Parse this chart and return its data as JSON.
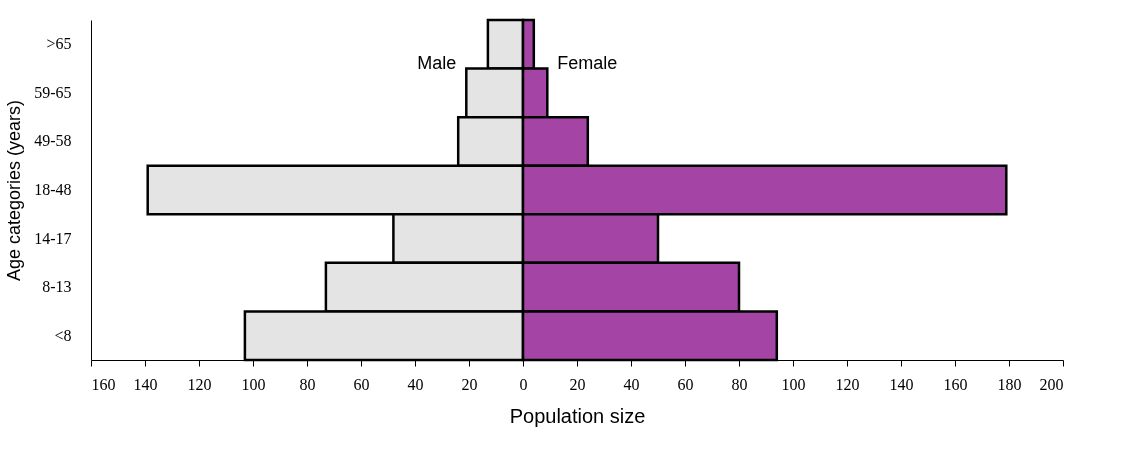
{
  "chart_data": {
    "type": "bar",
    "orientation": "horizontal",
    "stacked": true,
    "xlabel": "Population size",
    "ylabel": "Age categories (years)",
    "categories": [
      ">65",
      "59-65",
      "49-58",
      "18-48",
      "14-17",
      "8-13",
      "<8"
    ],
    "series": [
      {
        "name": "Male",
        "color": "#e4e4e4",
        "values": [
          -13,
          -21,
          -24,
          -139,
          -48,
          -73,
          -103
        ]
      },
      {
        "name": "Female",
        "color": "#a444a4",
        "values": [
          4,
          9,
          24,
          179,
          50,
          80,
          94
        ]
      }
    ],
    "xlim": [
      -160,
      200
    ],
    "xticks": [
      {
        "value": -160,
        "label": "160"
      },
      {
        "value": -140,
        "label": "140"
      },
      {
        "value": -120,
        "label": "120"
      },
      {
        "value": -100,
        "label": "100"
      },
      {
        "value": -80,
        "label": "80"
      },
      {
        "value": -60,
        "label": "60"
      },
      {
        "value": -40,
        "label": "40"
      },
      {
        "value": -20,
        "label": "20"
      },
      0,
      20,
      40,
      60,
      80,
      100,
      120,
      140,
      160,
      180,
      200
    ],
    "grid": false
  }
}
